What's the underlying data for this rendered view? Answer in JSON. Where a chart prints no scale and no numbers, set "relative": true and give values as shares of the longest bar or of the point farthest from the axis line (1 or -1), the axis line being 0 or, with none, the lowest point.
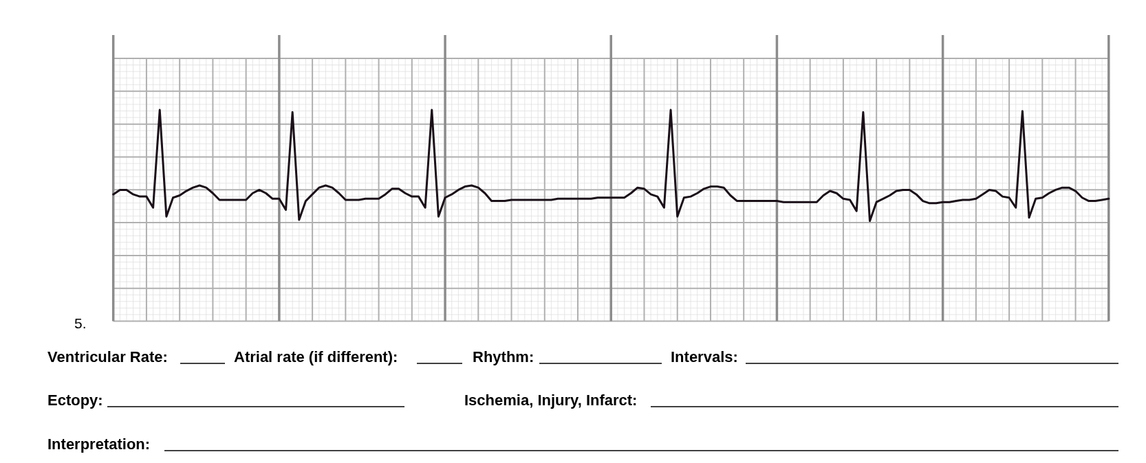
{
  "chart_data": {
    "type": "line",
    "relative": true,
    "grid": true,
    "color": "#1a1018",
    "categories": [
      null,
      null,
      null,
      null,
      null,
      null,
      null,
      null,
      null,
      null,
      null,
      null,
      null,
      null,
      null,
      null,
      null,
      null,
      null,
      null,
      null,
      null,
      null,
      null,
      null,
      null,
      null,
      null,
      null,
      null,
      null,
      null,
      null,
      null,
      null,
      null,
      null,
      null,
      null,
      null,
      null,
      null,
      null,
      null,
      null,
      null,
      null,
      null,
      null,
      null,
      null,
      null,
      null,
      null,
      null,
      null,
      null,
      null,
      null,
      null,
      null,
      null,
      null,
      null,
      null,
      null,
      null,
      null,
      null,
      null,
      null,
      null,
      null,
      null,
      null,
      null,
      null,
      null,
      null,
      null,
      null,
      null,
      null,
      null,
      null,
      null,
      null,
      null,
      null,
      null,
      null,
      null,
      null,
      null,
      null,
      null,
      null,
      null,
      null,
      null,
      null,
      null,
      null,
      null,
      null,
      null,
      null,
      null,
      null,
      null,
      null,
      null,
      null,
      null,
      null,
      null,
      null,
      null,
      null,
      null,
      null,
      null,
      null,
      null,
      null,
      null,
      null,
      null,
      null,
      null,
      null,
      null,
      null,
      null,
      null,
      null,
      null,
      null,
      null,
      null,
      null,
      null,
      null,
      null,
      null,
      null,
      null,
      null,
      null,
      null,
      null
    ],
    "values": [
      0.24,
      0.28,
      0.28,
      0.24,
      0.22,
      0.22,
      0.12,
      1,
      0.04,
      0.21,
      0.23,
      0.27,
      0.3,
      0.32,
      0.3,
      0.25,
      0.19,
      0.19,
      0.19,
      0.19,
      0.19,
      0.25,
      0.28,
      0.25,
      0.2,
      0.2,
      0.1,
      0.98,
      0.01,
      0.18,
      0.24,
      0.3,
      0.32,
      0.3,
      0.25,
      0.19,
      0.19,
      0.19,
      0.2,
      0.2,
      0.2,
      0.24,
      0.29,
      0.29,
      0.25,
      0.22,
      0.22,
      0.12,
      1,
      0.04,
      0.21,
      0.24,
      0.28,
      0.31,
      0.32,
      0.3,
      0.25,
      0.18,
      0.18,
      0.18,
      0.19,
      0.19,
      0.19,
      0.19,
      0.19,
      0.19,
      0.19,
      0.2,
      0.2,
      0.2,
      0.2,
      0.2,
      0.2,
      0.21,
      0.21,
      0.21,
      0.21,
      0.21,
      0.25,
      0.3,
      0.29,
      0.24,
      0.22,
      0.12,
      1,
      0.04,
      0.21,
      0.22,
      0.25,
      0.29,
      0.31,
      0.31,
      0.3,
      0.23,
      0.18,
      0.18,
      0.18,
      0.18,
      0.18,
      0.18,
      0.18,
      0.17,
      0.17,
      0.17,
      0.17,
      0.17,
      0.17,
      0.23,
      0.27,
      0.25,
      0.2,
      0.19,
      0.09,
      0.98,
      0,
      0.17,
      0.2,
      0.23,
      0.27,
      0.28,
      0.28,
      0.24,
      0.18,
      0.16,
      0.16,
      0.17,
      0.17,
      0.18,
      0.19,
      0.19,
      0.2,
      0.24,
      0.28,
      0.27,
      0.22,
      0.21,
      0.12,
      0.99,
      0.03,
      0.2,
      0.21,
      0.25,
      0.28,
      0.3,
      0.3,
      0.27,
      0.21,
      0.18,
      0.18,
      0.19,
      0.2
    ],
    "annotations": [
      "5.",
      "Ventricular Rate:",
      "Atrial rate (if different):",
      "Rhythm:",
      "Intervals:",
      "Ectopy:",
      "Ischemia, Injury, Infarct:",
      "Interpretation:"
    ]
  }
}
